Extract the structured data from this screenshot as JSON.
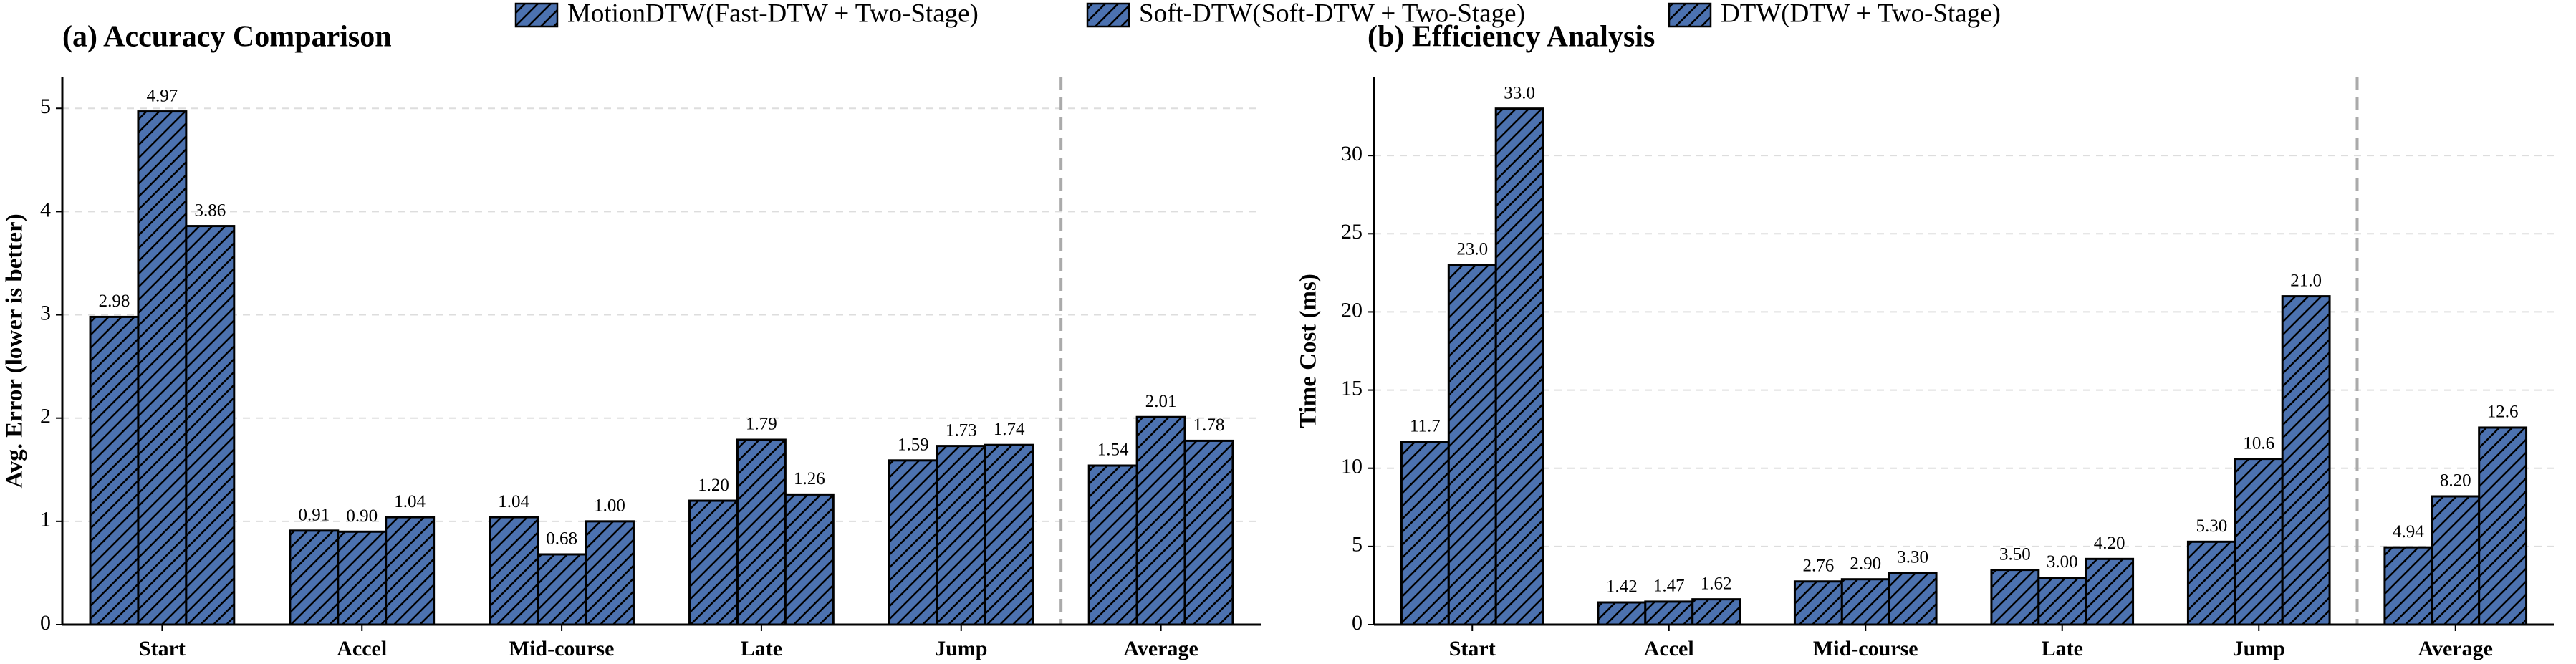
{
  "chart_data": [
    {
      "type": "bar",
      "title": "(a) Accuracy Comparison",
      "y_label": "Avg. Error (lower is better)",
      "categories": [
        "Start",
        "Accel",
        "Mid-course",
        "Late",
        "Jump",
        "Average"
      ],
      "ylim": [
        0,
        5.3
      ],
      "yticks": [
        0,
        1,
        2,
        3,
        4,
        5
      ],
      "grid": true,
      "series": [
        {
          "name": "MotionDTW(Fast-DTW + Two-Stage)",
          "color": "#4c72b0",
          "hatch": "/",
          "values": [
            2.98,
            0.91,
            1.04,
            1.2,
            1.59,
            1.54
          ],
          "value_labels": [
            "2.98",
            "0.91",
            "1.04",
            "1.20",
            "1.59",
            "1.54"
          ]
        },
        {
          "name": "Soft-DTW(Soft-DTW + Two-Stage)",
          "color": "#dd8452",
          "hatch": ".",
          "values": [
            4.97,
            0.9,
            0.68,
            1.79,
            1.73,
            2.01
          ],
          "value_labels": [
            "4.97",
            "0.90",
            "0.68",
            "1.79",
            "1.73",
            "2.01"
          ]
        },
        {
          "name": "DTW(DTW + Two-Stage)",
          "color": "#55a868",
          "hatch": "\\",
          "values": [
            3.86,
            1.04,
            1.0,
            1.26,
            1.74,
            1.78
          ],
          "value_labels": [
            "3.86",
            "1.04",
            "1.00",
            "1.26",
            "1.74",
            "1.78"
          ]
        }
      ]
    },
    {
      "type": "bar",
      "title": "(b) Efficiency Analysis",
      "y_label": "Time Cost (ms)",
      "categories": [
        "Start",
        "Accel",
        "Mid-course",
        "Late",
        "Jump",
        "Average"
      ],
      "ylim": [
        0,
        35
      ],
      "yticks": [
        0,
        5,
        10,
        15,
        20,
        25,
        30
      ],
      "grid": true,
      "series": [
        {
          "color": "#4c72b0",
          "hatch": "/",
          "values": [
            11.7,
            1.42,
            2.76,
            3.5,
            5.3,
            4.94
          ],
          "value_labels": [
            "11.7",
            "1.42",
            "2.76",
            "3.50",
            "5.30",
            "4.94"
          ]
        },
        {
          "color": "#dd8452",
          "hatch": ".",
          "values": [
            23.0,
            1.47,
            2.9,
            3.0,
            10.6,
            8.2
          ],
          "value_labels": [
            "23.0",
            "1.47",
            "2.90",
            "3.00",
            "10.6",
            "8.20"
          ]
        },
        {
          "color": "#55a868",
          "hatch": "\\",
          "values": [
            33.0,
            1.62,
            3.3,
            4.2,
            21.0,
            12.6
          ],
          "value_labels": [
            "33.0",
            "1.62",
            "3.30",
            "4.20",
            "21.0",
            "12.6"
          ]
        }
      ]
    }
  ]
}
